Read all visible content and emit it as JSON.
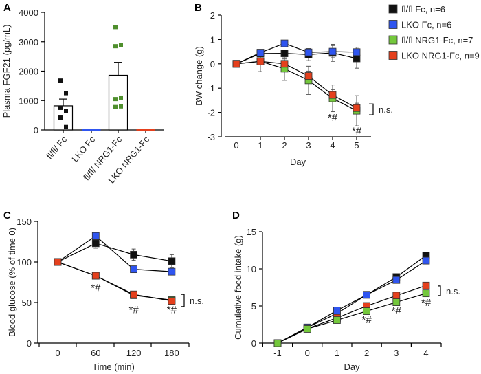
{
  "colors": {
    "black": "#111111",
    "blue": "#2f55f0",
    "green": "#74c83c",
    "red": "#e5401d",
    "dot_green": "#4f8f2d"
  },
  "chart_data": [
    {
      "panel": "A",
      "type": "bar",
      "ylabel": "Plasma FGF21 (pg/mL)",
      "ylim": [
        0,
        4000
      ],
      "yticks": [
        0,
        1000,
        2000,
        3000,
        4000
      ],
      "categories": [
        "fl/fl/ Fc",
        "LKO Fc",
        "fl/fl/ NRG1-Fc",
        "LKO NRG1-Fc"
      ],
      "values": [
        820,
        0,
        1860,
        0
      ],
      "errors": [
        230,
        0,
        440,
        0
      ],
      "bar_colors": [
        "black",
        "blue",
        "green",
        "red"
      ],
      "points": [
        [
          1680,
          1250,
          750,
          650,
          420,
          100
        ],
        [],
        [
          3500,
          2900,
          2850,
          1100,
          1050,
          800,
          780
        ],
        []
      ]
    },
    {
      "panel": "B",
      "type": "line",
      "xlabel": "Day",
      "ylabel": "BW change (g)",
      "x": [
        0,
        1,
        2,
        3,
        4,
        5
      ],
      "xticks": [
        0,
        1,
        2,
        3,
        4,
        5
      ],
      "ylim": [
        -3,
        2
      ],
      "yticks": [
        -3,
        -2,
        -1,
        0,
        1,
        2
      ],
      "series": [
        {
          "name": "fl/fl Fc, n=6",
          "color": "black",
          "values": [
            0,
            0.42,
            0.43,
            0.38,
            0.45,
            0.22
          ],
          "errors": [
            0,
            0.1,
            0.08,
            0.25,
            0.35,
            0.4
          ]
        },
        {
          "name": "LKO Fc, n=6",
          "color": "blue",
          "values": [
            0,
            0.46,
            0.84,
            0.47,
            0.5,
            0.48
          ],
          "errors": [
            0,
            0.05,
            0.05,
            0.08,
            0.25,
            0.2
          ]
        },
        {
          "name": "fl/fl NRG1-Fc, n=7",
          "color": "green",
          "values": [
            0,
            0.1,
            -0.2,
            -0.68,
            -1.42,
            -1.93
          ],
          "errors": [
            0,
            0.42,
            0.48,
            0.58,
            0.55,
            0.62
          ]
        },
        {
          "name": "LKO NRG1-Fc, n=9",
          "color": "red",
          "values": [
            0,
            0.1,
            0,
            -0.5,
            -1.28,
            -1.82
          ],
          "errors": [
            0,
            0.12,
            0.2,
            0.2,
            0.22,
            0.2
          ]
        }
      ],
      "annotations": [
        {
          "text": "*#",
          "x": 4,
          "y": -2.35
        },
        {
          "text": "*#",
          "x": 5,
          "y": -2.9
        }
      ],
      "bracket": {
        "text": "n.s.",
        "y": [
          -1.65,
          -2.1
        ]
      },
      "legend_position": "right"
    },
    {
      "panel": "C",
      "type": "line",
      "xlabel": "Time (min)",
      "ylabel": "Blood glucose (% of time 0)",
      "x": [
        0,
        60,
        120,
        180
      ],
      "xticks": [
        0,
        60,
        120,
        180
      ],
      "ylim": [
        0,
        150
      ],
      "yticks": [
        0,
        50,
        100,
        150
      ],
      "series": [
        {
          "color": "black",
          "values": [
            100,
            123,
            109,
            101
          ],
          "errors": [
            0,
            6,
            7,
            8
          ]
        },
        {
          "color": "blue",
          "values": [
            100,
            132,
            91,
            88
          ],
          "errors": [
            0,
            3,
            4,
            3
          ]
        },
        {
          "color": "green",
          "values": [
            100,
            83,
            59,
            53
          ],
          "errors": [
            0,
            2,
            2,
            2
          ]
        },
        {
          "color": "red",
          "values": [
            100,
            83,
            60,
            52
          ],
          "errors": [
            0,
            2,
            2,
            2
          ]
        }
      ],
      "annotations": [
        {
          "text": "*#",
          "x": 60,
          "y": 64
        },
        {
          "text": "*#",
          "x": 120,
          "y": 37
        },
        {
          "text": "*#",
          "x": 180,
          "y": 37
        }
      ],
      "bracket": {
        "text": "n.s.",
        "y": [
          60,
          45
        ]
      }
    },
    {
      "panel": "D",
      "type": "line",
      "xlabel": "Day",
      "ylabel": "Cumulative food intake (g)",
      "x": [
        -1,
        0,
        1,
        2,
        3,
        4
      ],
      "xticks": [
        -1,
        0,
        1,
        2,
        3,
        4
      ],
      "ylim": [
        0,
        15
      ],
      "yticks": [
        0,
        5,
        10,
        15
      ],
      "series": [
        {
          "color": "black",
          "values": [
            0,
            2.1,
            4.0,
            6.5,
            8.9,
            11.8
          ],
          "errors": [
            0,
            0.1,
            0.1,
            0.15,
            0.2,
            0.4
          ]
        },
        {
          "color": "blue",
          "values": [
            0,
            2.1,
            4.4,
            6.5,
            8.5,
            11.1
          ],
          "errors": [
            0,
            0.1,
            0.1,
            0.15,
            0.2,
            0.3
          ]
        },
        {
          "color": "red",
          "values": [
            0,
            1.95,
            3.4,
            5.0,
            6.4,
            7.75
          ],
          "errors": [
            0,
            0.1,
            0.1,
            0.1,
            0.15,
            0.2
          ]
        },
        {
          "color": "green",
          "values": [
            0,
            1.9,
            3.1,
            4.3,
            5.5,
            6.7
          ],
          "errors": [
            0,
            0.1,
            0.1,
            0.15,
            0.2,
            0.4
          ]
        }
      ],
      "annotations": [
        {
          "text": "*#",
          "x": 2,
          "y": 2.7
        },
        {
          "text": "*#",
          "x": 3,
          "y": 3.9
        },
        {
          "text": "*#",
          "x": 4,
          "y": 5.0
        }
      ],
      "bracket": {
        "text": "n.s.",
        "y": [
          7.7,
          6.4
        ]
      }
    }
  ]
}
